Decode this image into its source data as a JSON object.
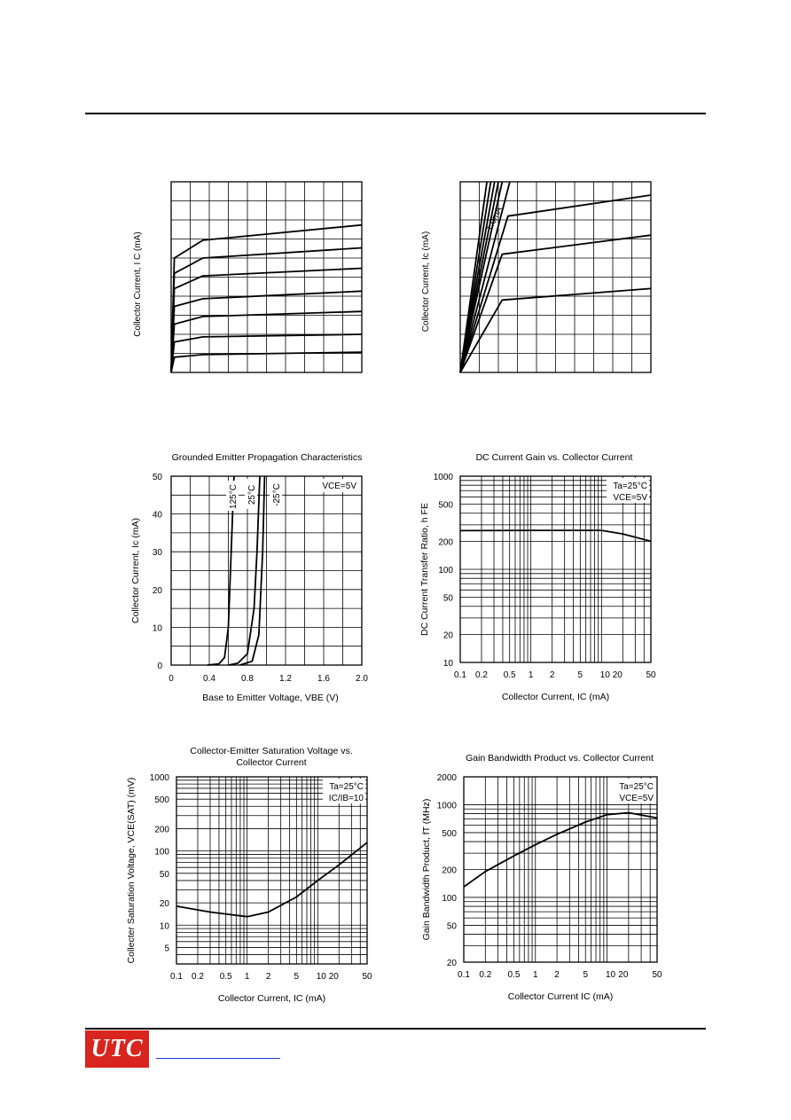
{
  "charts": [
    {
      "ylabel": "Collector Current, I C (mA)",
      "type": "line"
    },
    {
      "ylabel": "Collector Current, Ic (mA)",
      "annotation": "1.0mA",
      "type": "line"
    },
    {
      "title": "Grounded Emitter Propagation Characteristics",
      "xlabel": "Base to Emitter Voltage, VBE (V)",
      "ylabel": "Collector Current, Ic (mA)",
      "xticks": [
        "0",
        "0.4",
        "0.8",
        "1.2",
        "1.6",
        "2.0"
      ],
      "yticks": [
        "0",
        "10",
        "20",
        "30",
        "40",
        "50"
      ],
      "legend": [
        "VCE=5V"
      ],
      "curve_labels": [
        "125°C",
        "25°C",
        "-25°C"
      ],
      "type": "line"
    },
    {
      "title": "DC Current Gain vs. Collector Current",
      "xlabel": "Collector Current, IC (mA)",
      "ylabel": "DC Current Transfer Ratio, h FE",
      "xticks": [
        "0.1",
        "0.2",
        "0.5",
        "1",
        "2",
        "5",
        "10",
        "20",
        "50"
      ],
      "yticks": [
        "10",
        "20",
        "50",
        "100",
        "200",
        "500",
        "1000"
      ],
      "legend": [
        "Ta=25°C",
        "VCE=5V"
      ],
      "type": "line"
    },
    {
      "title": "Collector-Emitter Saturation Voltage vs. Collector Current",
      "xlabel": "Collector Current, IC (mA)",
      "ylabel": "Collecter Saturation Voltage, VCE(SAT) (mV)",
      "xticks": [
        "0.1",
        "0.2",
        "0.5",
        "1",
        "2",
        "5",
        "10",
        "20",
        "50"
      ],
      "yticks": [
        "5",
        "10",
        "20",
        "50",
        "100",
        "200",
        "500",
        "1000"
      ],
      "legend": [
        "Ta=25°C",
        "IC/IB=10"
      ],
      "type": "line"
    },
    {
      "title": "Gain Bandwidth Product vs. Collector Current",
      "xlabel": "Collector Current IC (mA)",
      "ylabel": "Gain Bandwidth Product, fT (MHz)",
      "xticks": [
        "0.1",
        "0.2",
        "0.5",
        "1",
        "2",
        "5",
        "10",
        "20",
        "50"
      ],
      "yticks": [
        "20",
        "50",
        "100",
        "200",
        "500",
        "1000",
        "2000"
      ],
      "legend": [
        "Ta=25°C",
        "VCE=5V"
      ],
      "type": "line"
    }
  ],
  "chart_data": [
    {
      "type": "line",
      "ylabel": "Collector Current, I C (mA)",
      "series": [
        {
          "values": [
            [
              0,
              0
            ],
            [
              0.05,
              0.45
            ],
            [
              0.5,
              0.52
            ],
            [
              3,
              0.58
            ]
          ]
        },
        {
          "values": [
            [
              0,
              0
            ],
            [
              0.05,
              0.39
            ],
            [
              0.5,
              0.45
            ],
            [
              3,
              0.49
            ]
          ]
        },
        {
          "values": [
            [
              0,
              0
            ],
            [
              0.05,
              0.33
            ],
            [
              0.5,
              0.38
            ],
            [
              3,
              0.41
            ]
          ]
        },
        {
          "values": [
            [
              0,
              0
            ],
            [
              0.05,
              0.26
            ],
            [
              0.5,
              0.29
            ],
            [
              3,
              0.32
            ]
          ]
        },
        {
          "values": [
            [
              0,
              0
            ],
            [
              0.05,
              0.19
            ],
            [
              0.5,
              0.22
            ],
            [
              3,
              0.24
            ]
          ]
        },
        {
          "values": [
            [
              0,
              0
            ],
            [
              0.05,
              0.12
            ],
            [
              0.5,
              0.14
            ],
            [
              3,
              0.15
            ]
          ]
        },
        {
          "values": [
            [
              0,
              0
            ],
            [
              0.05,
              0.06
            ],
            [
              0.5,
              0.07
            ],
            [
              3,
              0.08
            ]
          ]
        }
      ]
    },
    {
      "type": "line",
      "ylabel": "Collector Current, Ic (mA)",
      "series": [
        {
          "values": [
            [
              0,
              0
            ],
            [
              0.22,
              0.38
            ],
            [
              1,
              0.44
            ]
          ]
        },
        {
          "values": [
            [
              0,
              0
            ],
            [
              0.22,
              0.62
            ],
            [
              1,
              0.72
            ]
          ]
        },
        {
          "values": [
            [
              0,
              0
            ],
            [
              0.25,
              0.82
            ],
            [
              1,
              0.93
            ]
          ]
        },
        {
          "values": [
            [
              0,
              0
            ],
            [
              0.26,
              1.0
            ]
          ]
        },
        {
          "values": [
            [
              0,
              0
            ],
            [
              0.22,
              1.0
            ]
          ]
        },
        {
          "values": [
            [
              0,
              0
            ],
            [
              0.2,
              1.0
            ]
          ]
        },
        {
          "values": [
            [
              0,
              0
            ],
            [
              0.18,
              1.0
            ]
          ]
        },
        {
          "values": [
            [
              0,
              0
            ],
            [
              0.16,
              1.0
            ]
          ]
        },
        {
          "values": [
            [
              0,
              0
            ],
            [
              0.14,
              1.0
            ]
          ]
        }
      ]
    },
    {
      "type": "line",
      "title": "Grounded Emitter Propagation Characteristics",
      "xlabel": "Base to Emitter Voltage, VBE (V)",
      "ylabel": "Collector Current, Ic (mA)",
      "xlim": [
        0,
        2.0
      ],
      "ylim": [
        0,
        50
      ],
      "series": [
        {
          "name": "125°C",
          "values": [
            [
              0.38,
              0
            ],
            [
              0.5,
              0.3
            ],
            [
              0.56,
              2
            ],
            [
              0.6,
              10
            ],
            [
              0.66,
              50
            ]
          ]
        },
        {
          "name": "25°C",
          "values": [
            [
              0.6,
              0
            ],
            [
              0.7,
              0.5
            ],
            [
              0.8,
              3
            ],
            [
              0.87,
              15
            ],
            [
              0.9,
              30
            ],
            [
              0.93,
              50
            ]
          ]
        },
        {
          "name": "-25°C",
          "values": [
            [
              0.72,
              0
            ],
            [
              0.85,
              1
            ],
            [
              0.92,
              8
            ],
            [
              0.96,
              30
            ],
            [
              0.98,
              50
            ]
          ]
        }
      ]
    },
    {
      "type": "line",
      "title": "DC Current Gain vs. Collector Current",
      "xlabel": "Collector Current, IC (mA)",
      "ylabel": "DC Current Transfer Ratio, h FE",
      "xscale": "log",
      "yscale": "log",
      "xlim": [
        0.1,
        50
      ],
      "ylim": [
        10,
        1000
      ],
      "series": [
        {
          "name": "hFE",
          "values": [
            [
              0.1,
              260
            ],
            [
              1,
              262
            ],
            [
              10,
              262
            ],
            [
              20,
              240
            ],
            [
              50,
              200
            ]
          ]
        }
      ]
    },
    {
      "type": "line",
      "title": "Collector-Emitter Saturation Voltage vs. Collector Current",
      "xlabel": "Collector Current, IC (mA)",
      "ylabel": "Collecter Saturation Voltage, VCE(SAT) (mV)",
      "xscale": "log",
      "yscale": "log",
      "xlim": [
        0.1,
        50
      ],
      "ylim": [
        3,
        1000
      ],
      "series": [
        {
          "name": "VCE(sat)",
          "values": [
            [
              0.1,
              18
            ],
            [
              0.3,
              15
            ],
            [
              1,
              13
            ],
            [
              2,
              15
            ],
            [
              5,
              24
            ],
            [
              10,
              40
            ],
            [
              20,
              65
            ],
            [
              50,
              130
            ]
          ]
        }
      ]
    },
    {
      "type": "line",
      "title": "Gain Bandwidth Product vs. Collector Current",
      "xlabel": "Collector Current IC (mA)",
      "ylabel": "Gain Bandwidth Product, fT (MHz)",
      "xscale": "log",
      "yscale": "log",
      "xlim": [
        0.1,
        50
      ],
      "ylim": [
        20,
        2000
      ],
      "series": [
        {
          "name": "fT",
          "values": [
            [
              0.1,
              130
            ],
            [
              0.2,
              190
            ],
            [
              0.5,
              280
            ],
            [
              1,
              370
            ],
            [
              2,
              480
            ],
            [
              5,
              650
            ],
            [
              10,
              780
            ],
            [
              20,
              820
            ],
            [
              50,
              720
            ]
          ]
        }
      ]
    }
  ]
}
